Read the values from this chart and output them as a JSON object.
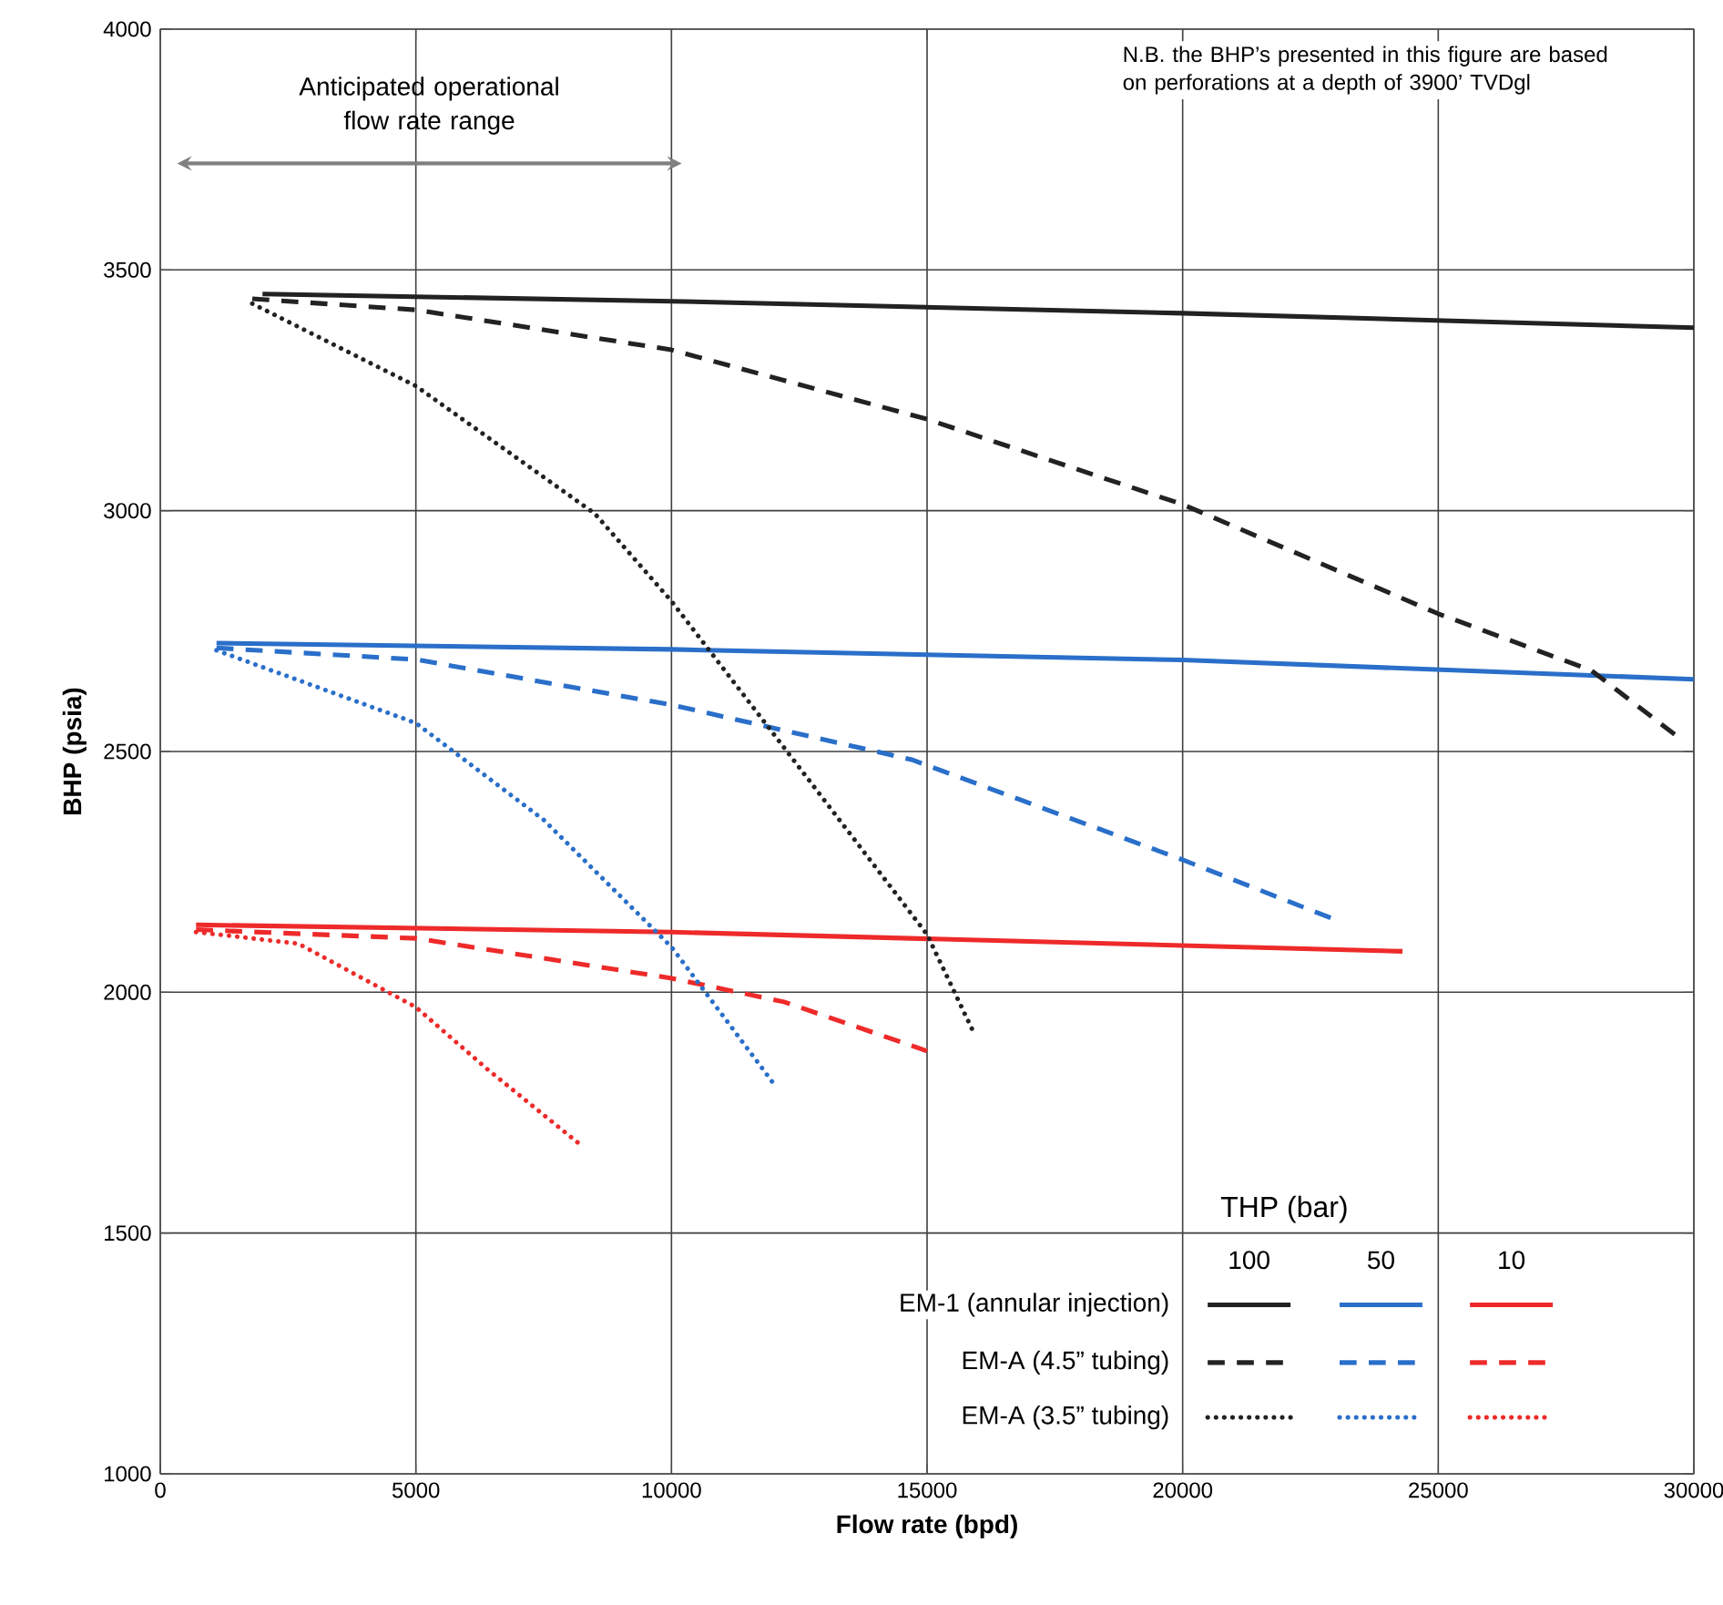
{
  "chart_data": {
    "type": "line",
    "xlabel": "Flow rate (bpd)",
    "ylabel": "BHP (psia)",
    "legend_title": "THP (bar)",
    "xlim": [
      0,
      30000
    ],
    "ylim": [
      1000,
      4000
    ],
    "xticks": [
      0,
      5000,
      10000,
      15000,
      20000,
      25000,
      30000
    ],
    "yticks": [
      1000,
      1500,
      2000,
      2500,
      3000,
      3500,
      4000
    ],
    "grid": true,
    "annotations": [
      "N.B. the BHP’s presented in this figure are based on perforations at a depth of 3900’ TVDgl",
      "Anticipated operational flow rate range",
      "EM-1 (annular injection)",
      "EM-A (4.5” tubing)",
      "EM-A (3.5” tubing)",
      "100",
      "50",
      "10"
    ],
    "series": [
      {
        "color": "#222222",
        "line_style": "solid",
        "x": [
          2000,
          10000,
          20000,
          30000
        ],
        "values": [
          3450,
          3435,
          3410,
          3380
        ]
      },
      {
        "color": "#2a6fc9",
        "line_style": "solid",
        "x": [
          1100,
          10000,
          20000,
          30000
        ],
        "values": [
          2725,
          2712,
          2690,
          2650
        ]
      },
      {
        "color": "#ee2a2a",
        "line_style": "solid",
        "x": [
          700,
          10000,
          24300
        ],
        "values": [
          2140,
          2125,
          2085
        ]
      },
      {
        "color": "#222222",
        "line_style": "dashed",
        "x": [
          1800,
          5000,
          10000,
          15000,
          20000,
          25000,
          28000,
          29800
        ],
        "values": [
          3440,
          3417,
          3334,
          3190,
          3013,
          2786,
          2668,
          2521
        ]
      },
      {
        "color": "#2a6fc9",
        "line_style": "dashed",
        "x": [
          1100,
          5000,
          10000,
          14700,
          20000,
          23000
        ],
        "values": [
          2715,
          2691,
          2597,
          2483,
          2275,
          2150
        ]
      },
      {
        "color": "#ee2a2a",
        "line_style": "dashed",
        "x": [
          700,
          5000,
          10000,
          12200,
          15000
        ],
        "values": [
          2130,
          2112,
          2029,
          1980,
          1878
        ]
      },
      {
        "color": "#222222",
        "line_style": "dotted",
        "x": [
          1800,
          5000,
          8500,
          10000,
          12000,
          15000,
          15900
        ],
        "values": [
          3430,
          3259,
          2994,
          2812,
          2536,
          2120,
          1919
        ]
      },
      {
        "color": "#2a6fc9",
        "line_style": "dotted",
        "x": [
          1100,
          5000,
          7500,
          10000,
          12000
        ],
        "values": [
          2710,
          2559,
          2358,
          2094,
          1810
        ]
      },
      {
        "color": "#ee2a2a",
        "line_style": "dotted",
        "x": [
          700,
          2700,
          5000,
          6400,
          8200
        ],
        "values": [
          2125,
          2101,
          1969,
          1840,
          1685
        ]
      }
    ]
  }
}
